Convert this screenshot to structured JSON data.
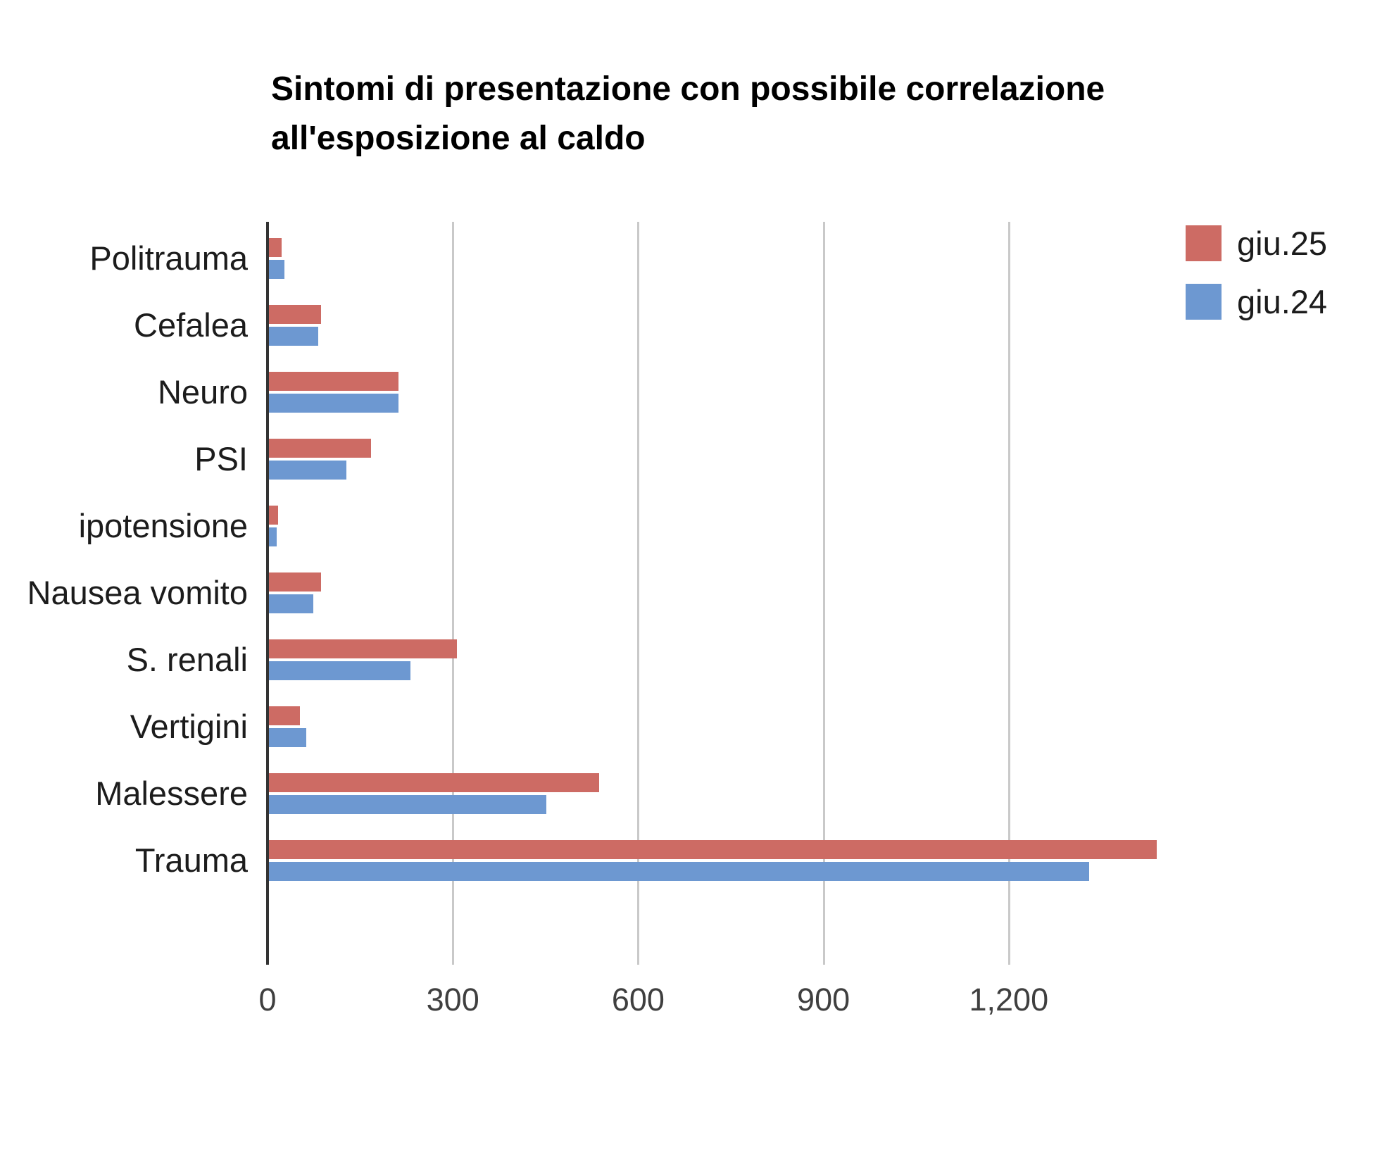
{
  "chart_data": {
    "type": "bar",
    "orientation": "horizontal",
    "title_lines": [
      "Sintomi di presentazione con possibile correlazione",
      "all'esposizione al caldo"
    ],
    "categories": [
      "Politrauma",
      "Cefalea",
      "Neuro",
      "PSI",
      "ipotensione",
      "Nausea vomito",
      "S. renali",
      "Vertigini",
      "Malessere",
      "Trauma"
    ],
    "series": [
      {
        "name": "giu.25",
        "color": "#cd6b64",
        "values": [
          20,
          85,
          210,
          165,
          15,
          85,
          305,
          50,
          535,
          1440
        ]
      },
      {
        "name": "giu.24",
        "color": "#6d98d1",
        "values": [
          25,
          80,
          210,
          125,
          12,
          72,
          230,
          60,
          450,
          1330
        ]
      }
    ],
    "x_axis": {
      "max": 1500,
      "ticks": [
        {
          "value": 0,
          "label": "0"
        },
        {
          "value": 300,
          "label": "300"
        },
        {
          "value": 600,
          "label": "600"
        },
        {
          "value": 900,
          "label": "900"
        },
        {
          "value": 1200,
          "label": "1,200"
        }
      ]
    },
    "legend_position": "top-right",
    "grid": true,
    "styles": {
      "gridline_color": "#c9c9c9",
      "axis_color": "#333333",
      "background": "#ffffff"
    }
  }
}
